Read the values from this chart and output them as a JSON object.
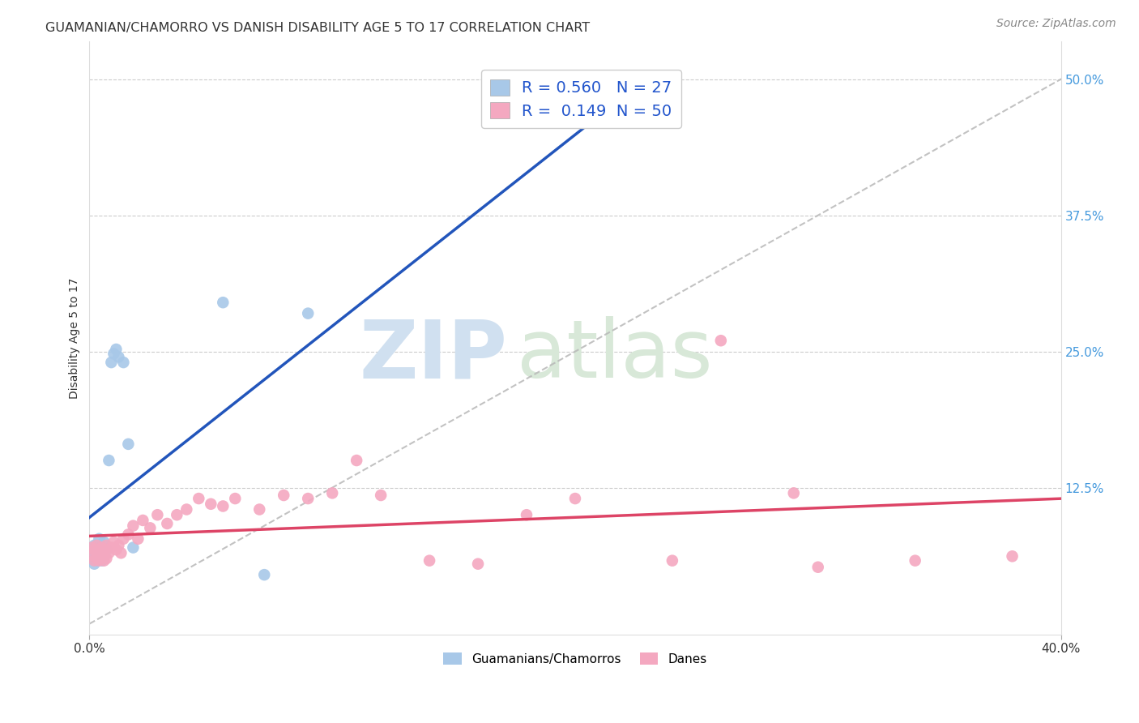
{
  "title": "GUAMANIAN/CHAMORRO VS DANISH DISABILITY AGE 5 TO 17 CORRELATION CHART",
  "source": "Source: ZipAtlas.com",
  "ylabel": "Disability Age 5 to 17",
  "ytick_vals": [
    0.125,
    0.25,
    0.375,
    0.5
  ],
  "ytick_labels": [
    "12.5%",
    "25.0%",
    "37.5%",
    "50.0%"
  ],
  "xlim": [
    0.0,
    0.4
  ],
  "ylim": [
    -0.01,
    0.535
  ],
  "legend_line1": "R = 0.560   N = 27",
  "legend_line2": "R =  0.149  N = 50",
  "label1": "Guamanians/Chamorros",
  "label2": "Danes",
  "color1": "#a8c8e8",
  "color2": "#f4a8c0",
  "trendline1_color": "#2255bb",
  "trendline2_color": "#dd4466",
  "refline_color": "#b8b8b8",
  "background_color": "#ffffff",
  "watermark_zip": "ZIP",
  "watermark_atlas": "atlas",
  "watermark_color": "#d0e0f0",
  "grid_color": "#cccccc",
  "title_color": "#333333",
  "ytick_color": "#4499dd",
  "xtick_color": "#333333",
  "legend_text_color": "#2255cc",
  "guamanian_x": [
    0.001,
    0.001,
    0.002,
    0.002,
    0.002,
    0.003,
    0.003,
    0.003,
    0.004,
    0.004,
    0.004,
    0.005,
    0.005,
    0.006,
    0.006,
    0.007,
    0.008,
    0.009,
    0.01,
    0.011,
    0.012,
    0.014,
    0.016,
    0.018,
    0.055,
    0.072,
    0.09
  ],
  "guamanian_y": [
    0.068,
    0.06,
    0.072,
    0.065,
    0.055,
    0.07,
    0.063,
    0.058,
    0.07,
    0.072,
    0.078,
    0.063,
    0.058,
    0.075,
    0.062,
    0.068,
    0.15,
    0.24,
    0.248,
    0.252,
    0.245,
    0.24,
    0.165,
    0.07,
    0.295,
    0.045,
    0.285
  ],
  "danish_x": [
    0.001,
    0.001,
    0.002,
    0.002,
    0.003,
    0.003,
    0.004,
    0.004,
    0.005,
    0.005,
    0.006,
    0.006,
    0.007,
    0.007,
    0.008,
    0.009,
    0.01,
    0.011,
    0.012,
    0.013,
    0.014,
    0.016,
    0.018,
    0.02,
    0.022,
    0.025,
    0.028,
    0.032,
    0.036,
    0.04,
    0.045,
    0.05,
    0.055,
    0.06,
    0.07,
    0.08,
    0.09,
    0.1,
    0.11,
    0.12,
    0.14,
    0.16,
    0.18,
    0.2,
    0.24,
    0.26,
    0.29,
    0.3,
    0.34,
    0.38
  ],
  "danish_y": [
    0.07,
    0.063,
    0.068,
    0.058,
    0.072,
    0.06,
    0.065,
    0.058,
    0.07,
    0.063,
    0.068,
    0.058,
    0.072,
    0.06,
    0.065,
    0.07,
    0.075,
    0.068,
    0.072,
    0.065,
    0.078,
    0.082,
    0.09,
    0.078,
    0.095,
    0.088,
    0.1,
    0.092,
    0.1,
    0.105,
    0.115,
    0.11,
    0.108,
    0.115,
    0.105,
    0.118,
    0.115,
    0.12,
    0.15,
    0.118,
    0.058,
    0.055,
    0.1,
    0.115,
    0.058,
    0.26,
    0.12,
    0.052,
    0.058,
    0.062
  ],
  "title_fontsize": 11.5,
  "axis_label_fontsize": 10,
  "tick_fontsize": 11,
  "legend_fontsize": 14,
  "source_fontsize": 10,
  "marker_size": 110
}
